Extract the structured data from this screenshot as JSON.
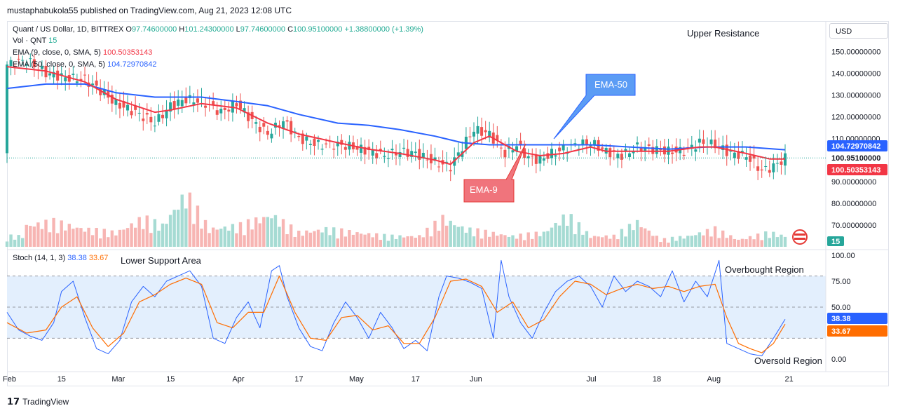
{
  "publisher_line": "mustaphabukola55 published on TradingView.com, Aug 21, 2023 12:08 UTC",
  "footer_brand": "TradingView",
  "currency": "USD",
  "legend": {
    "symbol": "Quant / US Dollar, 1D, BITTREX",
    "open_label": "O",
    "open": "97.74600000",
    "high_label": "H",
    "high": "101.24300000",
    "low_label": "L",
    "low": "97.74600000",
    "close_label": "C",
    "close": "100.95100000",
    "change": "+1.38800000 (+1.39%)",
    "vol_label": "Vol · QNT",
    "vol_value": "15",
    "ema9_label": "EMA (9, close, 0, SMA, 5)",
    "ema9_value": "100.50353143",
    "ema50_label": "EMA (50, close, 0, SMA, 5)",
    "ema50_value": "104.72970842",
    "stoch_label": "Stoch (14, 1, 3)",
    "stoch_k": "38.38",
    "stoch_d": "33.67"
  },
  "annotations": {
    "upper_resistance": "Upper Resistance",
    "lower_support": "Lower Support Area",
    "ema50_callout": "EMA-50",
    "ema9_callout": "EMA-9",
    "overbought": "Overbought Region",
    "oversold": "Oversold Region"
  },
  "price_badges": {
    "ema50": "104.72970842",
    "close": "100.95100000",
    "ema9": "100.50353143",
    "volume": "15",
    "stoch_k": "38.38",
    "stoch_d": "33.67"
  },
  "colors": {
    "up": "#26a69a",
    "down": "#ef5350",
    "ema9": "#f23645",
    "ema50": "#2962ff",
    "stoch_k": "#2962ff",
    "stoch_d": "#ff6d00",
    "band": "#e3effd",
    "callout_blue": "#5b9cf5",
    "callout_red": "#f0747c"
  },
  "chart_data": {
    "type": "candlestick",
    "price_axis": {
      "min": 60,
      "max": 155,
      "ticks": [
        "150.00000000",
        "140.00000000",
        "130.00000000",
        "120.00000000",
        "110.00000000",
        "100.00000000",
        "90.00000000",
        "80.00000000",
        "70.00000000"
      ],
      "tick_values": [
        150,
        140,
        130,
        120,
        110,
        100,
        90,
        80,
        70
      ]
    },
    "stoch_axis": {
      "min": 0,
      "max": 100,
      "ticks": [
        "100.00",
        "75.00",
        "50.00",
        "0.00"
      ],
      "tick_values": [
        100,
        75,
        50,
        0
      ],
      "bands": [
        80,
        50,
        20
      ]
    },
    "x_ticks": [
      {
        "label": "Feb",
        "day": 0
      },
      {
        "label": "15",
        "day": 14
      },
      {
        "label": "Mar",
        "day": 28
      },
      {
        "label": "15",
        "day": 42
      },
      {
        "label": "Apr",
        "day": 59
      },
      {
        "label": "17",
        "day": 75
      },
      {
        "label": "May",
        "day": 89
      },
      {
        "label": "17",
        "day": 105
      },
      {
        "label": "Jun",
        "day": 120
      },
      {
        "label": "Jul",
        "day": 150
      },
      {
        "label": "18",
        "day": 167
      },
      {
        "label": "Aug",
        "day": 181
      },
      {
        "label": "21",
        "day": 201
      }
    ],
    "last_day": 200,
    "close_points": [
      [
        0,
        144
      ],
      [
        5,
        146
      ],
      [
        10,
        140
      ],
      [
        15,
        138
      ],
      [
        20,
        137
      ],
      [
        24,
        132
      ],
      [
        28,
        126
      ],
      [
        33,
        122
      ],
      [
        38,
        117
      ],
      [
        42,
        125
      ],
      [
        46,
        128
      ],
      [
        50,
        127
      ],
      [
        55,
        122
      ],
      [
        59,
        126
      ],
      [
        63,
        118
      ],
      [
        67,
        112
      ],
      [
        71,
        118
      ],
      [
        75,
        110
      ],
      [
        80,
        107
      ],
      [
        85,
        107
      ],
      [
        89,
        106
      ],
      [
        93,
        104
      ],
      [
        97,
        102
      ],
      [
        101,
        104
      ],
      [
        105,
        103
      ],
      [
        110,
        99
      ],
      [
        114,
        97
      ],
      [
        117,
        106
      ],
      [
        120,
        114
      ],
      [
        124,
        112
      ],
      [
        128,
        103
      ],
      [
        131,
        107
      ],
      [
        134,
        101
      ],
      [
        137,
        100
      ],
      [
        140,
        103
      ],
      [
        143,
        105
      ],
      [
        146,
        107
      ],
      [
        150,
        108
      ],
      [
        154,
        104
      ],
      [
        158,
        102
      ],
      [
        162,
        106
      ],
      [
        166,
        105
      ],
      [
        170,
        104
      ],
      [
        174,
        104
      ],
      [
        178,
        108
      ],
      [
        182,
        107
      ],
      [
        186,
        103
      ],
      [
        190,
        102
      ],
      [
        194,
        95
      ],
      [
        197,
        97
      ],
      [
        200,
        100.95
      ]
    ],
    "ema9_points": [
      [
        0,
        143
      ],
      [
        10,
        141
      ],
      [
        20,
        136
      ],
      [
        28,
        128
      ],
      [
        38,
        122
      ],
      [
        42,
        123
      ],
      [
        50,
        126
      ],
      [
        59,
        124
      ],
      [
        67,
        117
      ],
      [
        75,
        112
      ],
      [
        85,
        108
      ],
      [
        93,
        105
      ],
      [
        101,
        103
      ],
      [
        110,
        100
      ],
      [
        114,
        98
      ],
      [
        120,
        108
      ],
      [
        124,
        111
      ],
      [
        131,
        104
      ],
      [
        137,
        102
      ],
      [
        143,
        103
      ],
      [
        150,
        106
      ],
      [
        154,
        104
      ],
      [
        162,
        104
      ],
      [
        170,
        104
      ],
      [
        178,
        106
      ],
      [
        182,
        106
      ],
      [
        190,
        103
      ],
      [
        196,
        100.5
      ],
      [
        200,
        100.5
      ]
    ],
    "ema50_points": [
      [
        0,
        133
      ],
      [
        10,
        135
      ],
      [
        20,
        135
      ],
      [
        28,
        131
      ],
      [
        38,
        129
      ],
      [
        50,
        129
      ],
      [
        59,
        127
      ],
      [
        67,
        125
      ],
      [
        75,
        121
      ],
      [
        85,
        117
      ],
      [
        93,
        116
      ],
      [
        101,
        114
      ],
      [
        110,
        111
      ],
      [
        117,
        108
      ],
      [
        124,
        107
      ],
      [
        131,
        107
      ],
      [
        140,
        107
      ],
      [
        150,
        107
      ],
      [
        160,
        106
      ],
      [
        170,
        105
      ],
      [
        180,
        106
      ],
      [
        190,
        106
      ],
      [
        200,
        104.73
      ]
    ],
    "volume_points": [
      [
        5,
        6
      ],
      [
        12,
        7
      ],
      [
        20,
        5
      ],
      [
        28,
        4
      ],
      [
        35,
        8
      ],
      [
        40,
        6
      ],
      [
        46,
        15
      ],
      [
        52,
        5
      ],
      [
        60,
        6
      ],
      [
        68,
        9
      ],
      [
        75,
        4
      ],
      [
        82,
        5
      ],
      [
        90,
        4
      ],
      [
        98,
        3
      ],
      [
        106,
        3
      ],
      [
        112,
        8
      ],
      [
        118,
        5
      ],
      [
        124,
        4
      ],
      [
        130,
        3
      ],
      [
        138,
        4
      ],
      [
        144,
        9
      ],
      [
        150,
        3
      ],
      [
        156,
        3
      ],
      [
        162,
        7
      ],
      [
        168,
        2
      ],
      [
        175,
        3
      ],
      [
        182,
        5
      ],
      [
        188,
        2
      ],
      [
        196,
        4
      ],
      [
        200,
        3
      ]
    ],
    "stoch_k_points": [
      [
        0,
        45
      ],
      [
        3,
        28
      ],
      [
        6,
        22
      ],
      [
        9,
        18
      ],
      [
        12,
        35
      ],
      [
        14,
        65
      ],
      [
        17,
        75
      ],
      [
        20,
        40
      ],
      [
        23,
        10
      ],
      [
        26,
        5
      ],
      [
        29,
        18
      ],
      [
        32,
        55
      ],
      [
        35,
        70
      ],
      [
        38,
        60
      ],
      [
        41,
        75
      ],
      [
        44,
        80
      ],
      [
        47,
        85
      ],
      [
        50,
        70
      ],
      [
        53,
        20
      ],
      [
        56,
        15
      ],
      [
        59,
        40
      ],
      [
        62,
        55
      ],
      [
        65,
        30
      ],
      [
        68,
        85
      ],
      [
        70,
        90
      ],
      [
        72,
        60
      ],
      [
        75,
        30
      ],
      [
        78,
        12
      ],
      [
        81,
        8
      ],
      [
        84,
        35
      ],
      [
        87,
        55
      ],
      [
        90,
        40
      ],
      [
        93,
        20
      ],
      [
        96,
        45
      ],
      [
        99,
        30
      ],
      [
        102,
        10
      ],
      [
        105,
        18
      ],
      [
        108,
        8
      ],
      [
        111,
        60
      ],
      [
        113,
        80
      ],
      [
        116,
        78
      ],
      [
        119,
        74
      ],
      [
        122,
        68
      ],
      [
        125,
        20
      ],
      [
        127,
        95
      ],
      [
        129,
        60
      ],
      [
        132,
        35
      ],
      [
        135,
        20
      ],
      [
        138,
        45
      ],
      [
        141,
        65
      ],
      [
        144,
        75
      ],
      [
        147,
        80
      ],
      [
        150,
        70
      ],
      [
        153,
        50
      ],
      [
        156,
        80
      ],
      [
        159,
        65
      ],
      [
        162,
        75
      ],
      [
        165,
        70
      ],
      [
        168,
        60
      ],
      [
        171,
        85
      ],
      [
        174,
        55
      ],
      [
        177,
        75
      ],
      [
        180,
        60
      ],
      [
        183,
        95
      ],
      [
        185,
        15
      ],
      [
        188,
        10
      ],
      [
        191,
        5
      ],
      [
        194,
        3
      ],
      [
        197,
        20
      ],
      [
        200,
        38.38
      ]
    ],
    "stoch_d_points": [
      [
        0,
        35
      ],
      [
        5,
        25
      ],
      [
        10,
        28
      ],
      [
        14,
        50
      ],
      [
        18,
        60
      ],
      [
        22,
        30
      ],
      [
        26,
        12
      ],
      [
        30,
        25
      ],
      [
        34,
        55
      ],
      [
        38,
        62
      ],
      [
        42,
        72
      ],
      [
        46,
        78
      ],
      [
        50,
        72
      ],
      [
        54,
        35
      ],
      [
        58,
        30
      ],
      [
        62,
        45
      ],
      [
        66,
        45
      ],
      [
        70,
        80
      ],
      [
        74,
        45
      ],
      [
        78,
        20
      ],
      [
        82,
        18
      ],
      [
        86,
        40
      ],
      [
        90,
        42
      ],
      [
        94,
        28
      ],
      [
        98,
        32
      ],
      [
        102,
        15
      ],
      [
        106,
        15
      ],
      [
        110,
        40
      ],
      [
        114,
        75
      ],
      [
        118,
        77
      ],
      [
        122,
        70
      ],
      [
        126,
        45
      ],
      [
        130,
        55
      ],
      [
        134,
        30
      ],
      [
        138,
        38
      ],
      [
        142,
        60
      ],
      [
        146,
        75
      ],
      [
        150,
        72
      ],
      [
        154,
        62
      ],
      [
        158,
        68
      ],
      [
        162,
        72
      ],
      [
        166,
        68
      ],
      [
        170,
        70
      ],
      [
        174,
        65
      ],
      [
        178,
        70
      ],
      [
        182,
        72
      ],
      [
        185,
        40
      ],
      [
        188,
        15
      ],
      [
        191,
        10
      ],
      [
        194,
        6
      ],
      [
        197,
        15
      ],
      [
        200,
        33.67
      ]
    ]
  }
}
